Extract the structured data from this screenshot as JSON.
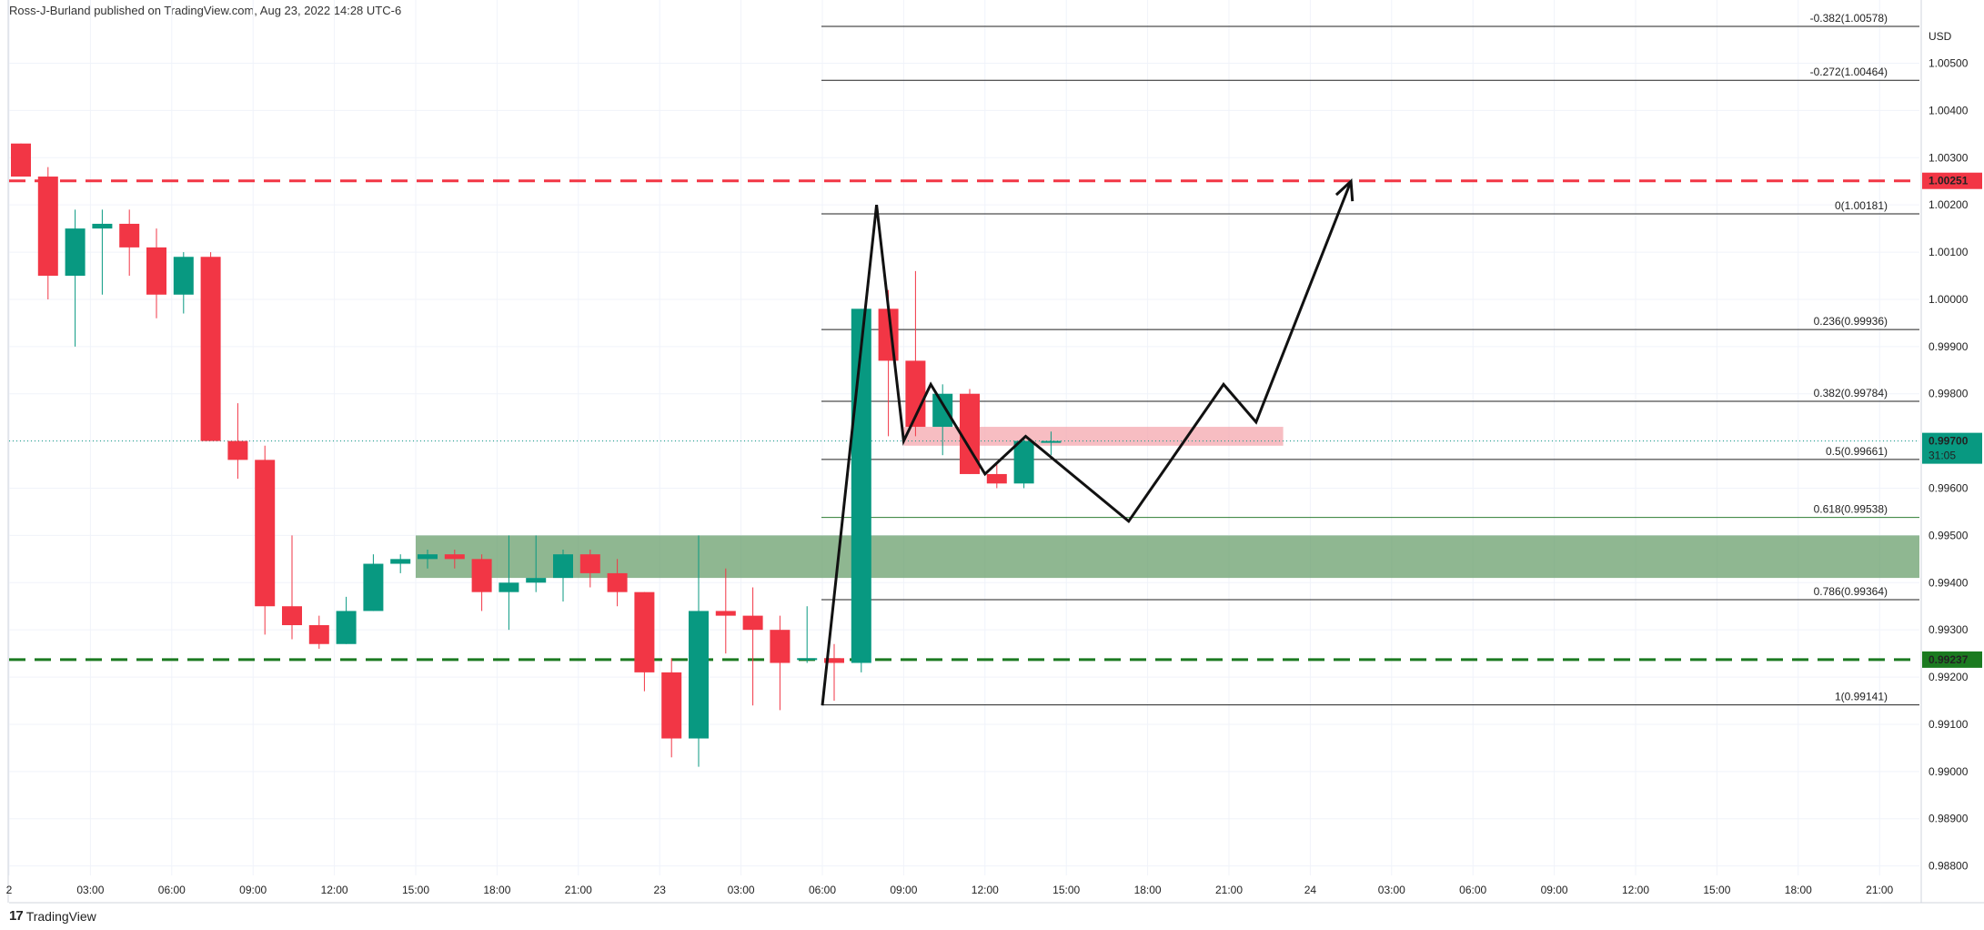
{
  "header": {
    "publisher": "Ross-J-Burland published on TradingView.com, Aug 23, 2022 14:28 UTC-6"
  },
  "footer": {
    "brand": "TradingView",
    "logo_mark": "17"
  },
  "colors": {
    "up": "#089981",
    "down": "#f23645",
    "grid": "#f0f3fa",
    "resistance": "#f23645",
    "support": "#1b7a20"
  },
  "chart_data": {
    "type": "candlestick",
    "title": "",
    "currency": "USD",
    "y_axis": {
      "range": [
        0.9878,
        1.0058
      ],
      "ticks": [
        "1.00500",
        "1.00400",
        "1.00300",
        "1.00200",
        "1.00100",
        "1.00000",
        "0.99900",
        "0.99800",
        "0.99700",
        "0.99600",
        "0.99500",
        "0.99400",
        "0.99300",
        "0.99200",
        "0.99100",
        "0.99000",
        "0.98900",
        "0.98800"
      ]
    },
    "x_axis": {
      "labels": [
        {
          "t": 0,
          "label": "2"
        },
        {
          "t": 3,
          "label": "03:00"
        },
        {
          "t": 6,
          "label": "06:00"
        },
        {
          "t": 9,
          "label": "09:00"
        },
        {
          "t": 12,
          "label": "12:00"
        },
        {
          "t": 15,
          "label": "15:00"
        },
        {
          "t": 18,
          "label": "18:00"
        },
        {
          "t": 21,
          "label": "21:00"
        },
        {
          "t": 24,
          "label": "23"
        },
        {
          "t": 27,
          "label": "03:00"
        },
        {
          "t": 30,
          "label": "06:00"
        },
        {
          "t": 33,
          "label": "09:00"
        },
        {
          "t": 36,
          "label": "12:00"
        },
        {
          "t": 39,
          "label": "15:00"
        },
        {
          "t": 42,
          "label": "18:00"
        },
        {
          "t": 45,
          "label": "21:00"
        },
        {
          "t": 48,
          "label": "24"
        },
        {
          "t": 51,
          "label": "03:00"
        },
        {
          "t": 54,
          "label": "06:00"
        },
        {
          "t": 57,
          "label": "09:00"
        },
        {
          "t": 60,
          "label": "12:00"
        },
        {
          "t": 63,
          "label": "15:00"
        },
        {
          "t": 66,
          "label": "18:00"
        },
        {
          "t": 69,
          "label": "21:00"
        }
      ]
    },
    "candles": [
      {
        "t": 0,
        "o": 1.0033,
        "h": 1.0033,
        "l": 1.0026,
        "c": 1.0026
      },
      {
        "t": 1,
        "o": 1.0026,
        "h": 1.0028,
        "l": 1.0,
        "c": 1.0005
      },
      {
        "t": 2,
        "o": 1.0005,
        "h": 1.0019,
        "l": 0.999,
        "c": 1.0015
      },
      {
        "t": 3,
        "o": 1.0015,
        "h": 1.0019,
        "l": 1.0001,
        "c": 1.0016
      },
      {
        "t": 4,
        "o": 1.0016,
        "h": 1.0019,
        "l": 1.0005,
        "c": 1.0011
      },
      {
        "t": 5,
        "o": 1.0011,
        "h": 1.0015,
        "l": 0.9996,
        "c": 1.0001
      },
      {
        "t": 6,
        "o": 1.0001,
        "h": 1.001,
        "l": 0.9997,
        "c": 1.0009
      },
      {
        "t": 7,
        "o": 1.0009,
        "h": 1.001,
        "l": 0.997,
        "c": 0.997
      },
      {
        "t": 8,
        "o": 0.997,
        "h": 0.9978,
        "l": 0.9962,
        "c": 0.9966
      },
      {
        "t": 9,
        "o": 0.9966,
        "h": 0.9969,
        "l": 0.9929,
        "c": 0.9935
      },
      {
        "t": 10,
        "o": 0.9935,
        "h": 0.995,
        "l": 0.9928,
        "c": 0.9931
      },
      {
        "t": 11,
        "o": 0.9931,
        "h": 0.9933,
        "l": 0.9926,
        "c": 0.9927
      },
      {
        "t": 12,
        "o": 0.9927,
        "h": 0.9937,
        "l": 0.9927,
        "c": 0.9934
      },
      {
        "t": 13,
        "o": 0.9934,
        "h": 0.9946,
        "l": 0.9934,
        "c": 0.9944
      },
      {
        "t": 14,
        "o": 0.9944,
        "h": 0.9946,
        "l": 0.9942,
        "c": 0.9945
      },
      {
        "t": 15,
        "o": 0.9945,
        "h": 0.9947,
        "l": 0.9943,
        "c": 0.9946
      },
      {
        "t": 16,
        "o": 0.9946,
        "h": 0.9947,
        "l": 0.9943,
        "c": 0.9945
      },
      {
        "t": 17,
        "o": 0.9945,
        "h": 0.9946,
        "l": 0.9934,
        "c": 0.9938
      },
      {
        "t": 18,
        "o": 0.9938,
        "h": 0.995,
        "l": 0.993,
        "c": 0.994
      },
      {
        "t": 19,
        "o": 0.994,
        "h": 0.995,
        "l": 0.9938,
        "c": 0.9941
      },
      {
        "t": 20,
        "o": 0.9941,
        "h": 0.9947,
        "l": 0.9936,
        "c": 0.9946
      },
      {
        "t": 21,
        "o": 0.9946,
        "h": 0.9947,
        "l": 0.9939,
        "c": 0.9942
      },
      {
        "t": 22,
        "o": 0.9942,
        "h": 0.9945,
        "l": 0.9935,
        "c": 0.9938
      },
      {
        "t": 23,
        "o": 0.9938,
        "h": 0.9938,
        "l": 0.9917,
        "c": 0.9921
      },
      {
        "t": 24,
        "o": 0.9921,
        "h": 0.9924,
        "l": 0.9903,
        "c": 0.9907
      },
      {
        "t": 25,
        "o": 0.9907,
        "h": 0.995,
        "l": 0.9901,
        "c": 0.9934
      },
      {
        "t": 26,
        "o": 0.9934,
        "h": 0.9943,
        "l": 0.9925,
        "c": 0.9933
      },
      {
        "t": 27,
        "o": 0.9933,
        "h": 0.9939,
        "l": 0.9914,
        "c": 0.993
      },
      {
        "t": 28,
        "o": 0.993,
        "h": 0.9933,
        "l": 0.9913,
        "c": 0.9923
      },
      {
        "t": 29,
        "o": 0.9924,
        "h": 0.9935,
        "l": 0.9923,
        "c": 0.9924
      },
      {
        "t": 30,
        "o": 0.9924,
        "h": 0.9927,
        "l": 0.9915,
        "c": 0.9923
      },
      {
        "t": 31,
        "o": 0.9923,
        "h": 0.9998,
        "l": 0.9921,
        "c": 0.9998
      },
      {
        "t": 32,
        "o": 0.9998,
        "h": 1.0002,
        "l": 0.9971,
        "c": 0.9987
      },
      {
        "t": 33,
        "o": 0.9987,
        "h": 1.0006,
        "l": 0.9971,
        "c": 0.9973
      },
      {
        "t": 34,
        "o": 0.9973,
        "h": 0.9982,
        "l": 0.9967,
        "c": 0.998
      },
      {
        "t": 35,
        "o": 0.998,
        "h": 0.9981,
        "l": 0.9963,
        "c": 0.9963
      },
      {
        "t": 36,
        "o": 0.9963,
        "h": 0.9965,
        "l": 0.996,
        "c": 0.9961
      },
      {
        "t": 37,
        "o": 0.9961,
        "h": 0.9971,
        "l": 0.996,
        "c": 0.997
      },
      {
        "t": 38,
        "o": 0.997,
        "h": 0.9972,
        "l": 0.9967,
        "c": 0.997
      }
    ],
    "fibonacci": {
      "levels": [
        {
          "label": "-0.382(1.00578)",
          "price": 1.00578
        },
        {
          "label": "-0.272(1.00464)",
          "price": 1.00464
        },
        {
          "label": "0(1.00181)",
          "price": 1.00181
        },
        {
          "label": "0.236(0.99936)",
          "price": 0.99936
        },
        {
          "label": "0.382(0.99784)",
          "price": 0.99784
        },
        {
          "label": "0.5(0.99661)",
          "price": 0.99661
        },
        {
          "label": "0.618(0.99538)",
          "price": 0.99538
        },
        {
          "label": "0.786(0.99364)",
          "price": 0.99364
        },
        {
          "label": "1(0.99141)",
          "price": 0.99141
        }
      ]
    },
    "horizontal_lines": [
      {
        "price": 1.00251,
        "label": "1.00251",
        "color": "#f23645",
        "style": "dashed"
      },
      {
        "price": 0.99237,
        "label": "0.99237",
        "color": "#1b7a20",
        "style": "dashed"
      }
    ],
    "zones": [
      {
        "name": "green-zone",
        "t_start": 15,
        "t_end": 71,
        "top": 0.995,
        "bottom": 0.9941,
        "color": "#6a9f6c"
      },
      {
        "name": "red-zone",
        "t_start": 33,
        "t_end": 47,
        "top": 0.9973,
        "bottom": 0.9969,
        "color": "#f4a7ae"
      }
    ],
    "current_price": {
      "price": 0.997,
      "label": "0.99700",
      "countdown": "31:05"
    },
    "projection_path": [
      {
        "t": 30,
        "p": 0.9914
      },
      {
        "t": 32,
        "p": 1.002
      },
      {
        "t": 33,
        "p": 0.997
      },
      {
        "t": 34,
        "p": 0.9982
      },
      {
        "t": 36,
        "p": 0.9963
      },
      {
        "t": 37.5,
        "p": 0.9971
      },
      {
        "t": 41.3,
        "p": 0.9953
      },
      {
        "t": 44.8,
        "p": 0.9982
      },
      {
        "t": 46,
        "p": 0.9974
      },
      {
        "t": 49.5,
        "p": 1.0025
      }
    ]
  }
}
